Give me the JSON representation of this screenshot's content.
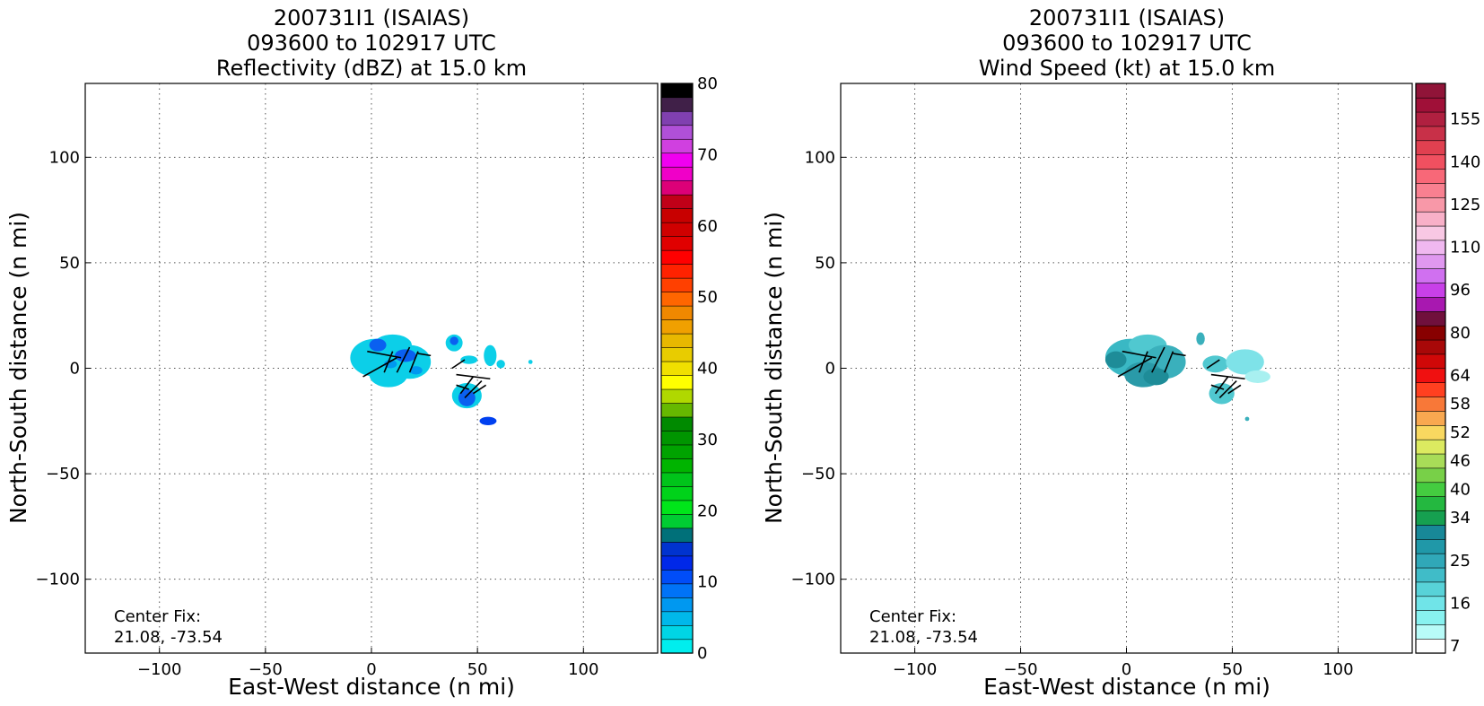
{
  "chart_data": [
    {
      "type": "heatmap",
      "title_lines": [
        "200731I1 (ISAIAS)",
        "093600 to 102917 UTC",
        "Reflectivity (dBZ) at 15.0 km"
      ],
      "xlabel": "East-West distance (n mi)",
      "ylabel": "North-South distance (n mi)",
      "xlim": [
        -135,
        135
      ],
      "ylim": [
        -135,
        135
      ],
      "x_ticks": [
        -100,
        -50,
        0,
        50,
        100
      ],
      "y_ticks": [
        -100,
        -50,
        0,
        50,
        100
      ],
      "x_tick_labels": [
        "−100",
        "−50",
        "0",
        "50",
        "100"
      ],
      "y_tick_labels": [
        "−100",
        "−50",
        "0",
        "50",
        "100"
      ],
      "grid": true,
      "annotation": [
        "Center Fix:",
        "21.08, -73.54"
      ],
      "colorbar": {
        "min": 0,
        "max": 80,
        "tick_values": [
          0,
          10,
          20,
          30,
          40,
          50,
          60,
          70,
          80
        ],
        "tick_labels": [
          "0",
          "10",
          "20",
          "30",
          "40",
          "50",
          "60",
          "70",
          "80"
        ],
        "colors": [
          "#00eeee",
          "#00d5e5",
          "#00b8ea",
          "#0098f0",
          "#0073f7",
          "#004df8",
          "#0028e8",
          "#0033cf",
          "#007079",
          "#00cc33",
          "#00e51a",
          "#00d21a",
          "#00c41a",
          "#00b400",
          "#00a300",
          "#009500",
          "#008a00",
          "#66b800",
          "#b0d800",
          "#ffff00",
          "#f0e000",
          "#e8cc00",
          "#e8b800",
          "#f0a000",
          "#f08800",
          "#ff6600",
          "#ff4000",
          "#ff2200",
          "#ff0000",
          "#e00000",
          "#d00000",
          "#c80000",
          "#c00018",
          "#dc0078",
          "#f000c8",
          "#f000f0",
          "#d040e0",
          "#b050d8",
          "#8040b0",
          "#402048",
          "#000000"
        ]
      },
      "echo_cells": [
        {
          "x": 2,
          "y": 5,
          "rx": 12,
          "ry": 9,
          "color": "#0ccfe8"
        },
        {
          "x": 10,
          "y": 11,
          "rx": 9,
          "ry": 5,
          "color": "#0ccfe8"
        },
        {
          "x": 18,
          "y": 3,
          "rx": 10,
          "ry": 8,
          "color": "#0ccfe8"
        },
        {
          "x": 8,
          "y": -3,
          "rx": 9,
          "ry": 6,
          "color": "#0ccfe8"
        },
        {
          "x": 3,
          "y": 11,
          "rx": 4,
          "ry": 3,
          "color": "#0a60f0"
        },
        {
          "x": 16,
          "y": 6,
          "rx": 5,
          "ry": 3,
          "color": "#0a60f0"
        },
        {
          "x": 9,
          "y": 2,
          "rx": 3,
          "ry": 2,
          "color": "#0098f0"
        },
        {
          "x": 21,
          "y": -1,
          "rx": 3,
          "ry": 2,
          "color": "#0098f0"
        },
        {
          "x": 39,
          "y": 12,
          "rx": 4,
          "ry": 4,
          "color": "#0ccfe8"
        },
        {
          "x": 39,
          "y": 13,
          "rx": 2,
          "ry": 2,
          "color": "#0a60f0"
        },
        {
          "x": 46,
          "y": 4,
          "rx": 4,
          "ry": 2,
          "color": "#0ccfe8"
        },
        {
          "x": 56,
          "y": 6,
          "rx": 3,
          "ry": 5,
          "color": "#0ccfe8"
        },
        {
          "x": 61,
          "y": 2,
          "rx": 2,
          "ry": 2,
          "color": "#0ccfe8"
        },
        {
          "x": 45,
          "y": -13,
          "rx": 7,
          "ry": 6,
          "color": "#0ccfe8"
        },
        {
          "x": 45,
          "y": -14,
          "rx": 4,
          "ry": 4,
          "color": "#0a60f0"
        },
        {
          "x": 55,
          "y": -25,
          "rx": 4,
          "ry": 2,
          "color": "#0040f0"
        },
        {
          "x": 75,
          "y": 3,
          "rx": 1,
          "ry": 1,
          "color": "#0ccfe8"
        }
      ],
      "wind_vectors": [
        {
          "x1": -2,
          "y1": 8,
          "x2": 14,
          "y2": 5
        },
        {
          "x1": -4,
          "y1": -4,
          "x2": 12,
          "y2": 5
        },
        {
          "x1": 6,
          "y1": -2,
          "x2": 10,
          "y2": 8
        },
        {
          "x1": 12,
          "y1": -2,
          "x2": 18,
          "y2": 10
        },
        {
          "x1": 18,
          "y1": -2,
          "x2": 22,
          "y2": 8
        },
        {
          "x1": 22,
          "y1": 7,
          "x2": 28,
          "y2": 6
        },
        {
          "x1": 38,
          "y1": 0,
          "x2": 44,
          "y2": 4
        },
        {
          "x1": 40,
          "y1": -3,
          "x2": 56,
          "y2": -5
        },
        {
          "x1": 42,
          "y1": -12,
          "x2": 48,
          "y2": -4
        },
        {
          "x1": 44,
          "y1": -14,
          "x2": 52,
          "y2": -6
        },
        {
          "x1": 40,
          "y1": -8,
          "x2": 46,
          "y2": -10
        },
        {
          "x1": 48,
          "y1": -12,
          "x2": 54,
          "y2": -8
        }
      ]
    },
    {
      "type": "heatmap",
      "title_lines": [
        "200731I1 (ISAIAS)",
        "093600 to 102917 UTC",
        "Wind Speed (kt) at 15.0 km"
      ],
      "xlabel": "East-West distance (n mi)",
      "ylabel": "North-South distance (n mi)",
      "xlim": [
        -135,
        135
      ],
      "ylim": [
        -135,
        135
      ],
      "x_ticks": [
        -100,
        -50,
        0,
        50,
        100
      ],
      "y_ticks": [
        -100,
        -50,
        0,
        50,
        100
      ],
      "x_tick_labels": [
        "−100",
        "−50",
        "0",
        "50",
        "100"
      ],
      "y_tick_labels": [
        "−100",
        "−50",
        "0",
        "50",
        "100"
      ],
      "grid": true,
      "annotation": [
        "Center Fix:",
        "21.08, -73.54"
      ],
      "colorbar": {
        "tick_labels": [
          "7",
          "16",
          "25",
          "34",
          "40",
          "46",
          "52",
          "58",
          "64",
          "80",
          "96",
          "110",
          "125",
          "140",
          "155"
        ],
        "tick_segment_index": [
          0,
          2,
          5,
          8,
          10,
          12,
          14,
          16,
          18,
          20,
          22,
          24,
          26,
          28,
          30
        ],
        "colors": [
          "#ffffff",
          "#b8fbf8",
          "#88f2f0",
          "#70e4e8",
          "#58d2d8",
          "#40bcc8",
          "#30a8b8",
          "#2098a8",
          "#188898",
          "#16a050",
          "#24b840",
          "#44cc40",
          "#78d048",
          "#a8dc58",
          "#dcea60",
          "#f8d860",
          "#f8a850",
          "#f87838",
          "#ff4020",
          "#f01010",
          "#d00808",
          "#a80808",
          "#880000",
          "#70103c",
          "#a818b0",
          "#c840e8",
          "#d070f0",
          "#e098f0",
          "#f0b8f0",
          "#f8c8e4",
          "#f8b0c8",
          "#f898a8",
          "#f88090",
          "#f86878",
          "#f05060",
          "#e04050",
          "#c83048",
          "#b02040",
          "#a01038",
          "#901438"
        ],
        "num_segments_shown": 26
      },
      "echo_cells": [
        {
          "x": 2,
          "y": 5,
          "rx": 12,
          "ry": 9,
          "color": "#3ab8c4"
        },
        {
          "x": 10,
          "y": 11,
          "rx": 9,
          "ry": 5,
          "color": "#50c8d0"
        },
        {
          "x": 18,
          "y": 3,
          "rx": 10,
          "ry": 8,
          "color": "#3ab0bc"
        },
        {
          "x": 8,
          "y": -3,
          "rx": 9,
          "ry": 6,
          "color": "#2a9aa8"
        },
        {
          "x": -5,
          "y": 4,
          "rx": 5,
          "ry": 4,
          "color": "#1e8c98"
        },
        {
          "x": 14,
          "y": -4,
          "rx": 6,
          "ry": 4,
          "color": "#1e8c98"
        },
        {
          "x": 42,
          "y": 2,
          "rx": 6,
          "ry": 4,
          "color": "#50c8d0"
        },
        {
          "x": 56,
          "y": 3,
          "rx": 9,
          "ry": 6,
          "color": "#7ee2e8"
        },
        {
          "x": 62,
          "y": -4,
          "rx": 6,
          "ry": 3,
          "color": "#a8f0f0"
        },
        {
          "x": 35,
          "y": 14,
          "rx": 2,
          "ry": 3,
          "color": "#3ab0bc"
        },
        {
          "x": 45,
          "y": -12,
          "rx": 6,
          "ry": 5,
          "color": "#50c8d0"
        },
        {
          "x": 57,
          "y": -24,
          "rx": 1,
          "ry": 1,
          "color": "#3ab0bc"
        }
      ],
      "wind_vectors": [
        {
          "x1": -2,
          "y1": 8,
          "x2": 14,
          "y2": 5
        },
        {
          "x1": -4,
          "y1": -4,
          "x2": 12,
          "y2": 5
        },
        {
          "x1": 6,
          "y1": -2,
          "x2": 10,
          "y2": 8
        },
        {
          "x1": 12,
          "y1": -2,
          "x2": 18,
          "y2": 10
        },
        {
          "x1": 18,
          "y1": -2,
          "x2": 22,
          "y2": 8
        },
        {
          "x1": 22,
          "y1": 7,
          "x2": 28,
          "y2": 6
        },
        {
          "x1": 38,
          "y1": 0,
          "x2": 44,
          "y2": 4
        },
        {
          "x1": 40,
          "y1": -3,
          "x2": 56,
          "y2": -5
        },
        {
          "x1": 42,
          "y1": -12,
          "x2": 48,
          "y2": -4
        },
        {
          "x1": 44,
          "y1": -14,
          "x2": 52,
          "y2": -6
        },
        {
          "x1": 40,
          "y1": -8,
          "x2": 46,
          "y2": -10
        },
        {
          "x1": 48,
          "y1": -12,
          "x2": 54,
          "y2": -8
        }
      ]
    }
  ]
}
